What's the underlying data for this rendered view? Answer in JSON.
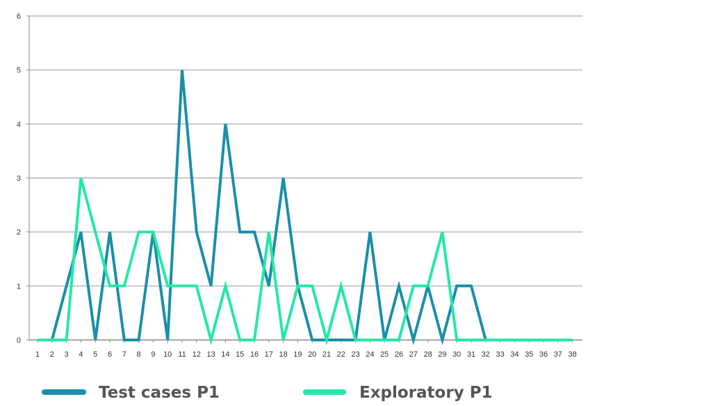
{
  "chart_data": {
    "type": "line",
    "title": "",
    "xlabel": "",
    "ylabel": "",
    "x": [
      1,
      2,
      3,
      4,
      5,
      6,
      7,
      8,
      9,
      10,
      11,
      12,
      13,
      14,
      15,
      16,
      17,
      18,
      19,
      20,
      21,
      22,
      23,
      24,
      25,
      26,
      27,
      28,
      29,
      30,
      31,
      32,
      33,
      34,
      35,
      36,
      37,
      38
    ],
    "x_tick_labels": [
      "1",
      "2",
      "3",
      "4",
      "5",
      "6",
      "7",
      "8",
      "9",
      "10",
      "11",
      "12",
      "13",
      "14",
      "15",
      "16",
      "17",
      "18",
      "19",
      "20",
      "21",
      "22",
      "23",
      "24",
      "25",
      "26",
      "27",
      "28",
      "29",
      "30",
      "31",
      "32",
      "33",
      "34",
      "35",
      "36",
      "37",
      "38"
    ],
    "ylim": [
      0,
      6
    ],
    "y_ticks": [
      0,
      1,
      2,
      3,
      4,
      5,
      6
    ],
    "y_tick_labels": [
      "0",
      "1",
      "2",
      "3",
      "4",
      "5",
      "6"
    ],
    "grid": true,
    "legend_position": "bottom",
    "series": [
      {
        "name": "Test cases P1",
        "color": "#1a8fa8",
        "values": [
          0,
          0,
          1,
          2,
          0,
          2,
          0,
          0,
          2,
          0,
          5,
          2,
          1,
          4,
          2,
          2,
          1,
          3,
          1,
          0,
          0,
          0,
          0,
          2,
          0,
          1,
          0,
          1,
          0,
          1,
          1,
          0,
          0,
          0,
          0,
          0,
          0,
          0
        ]
      },
      {
        "name": "Exploratory P1",
        "color": "#25e8a6",
        "values": [
          0,
          0,
          0,
          3,
          2,
          1,
          1,
          2,
          2,
          1,
          1,
          1,
          0,
          1,
          0,
          0,
          2,
          0,
          1,
          1,
          0,
          1,
          0,
          0,
          0,
          0,
          1,
          1,
          2,
          0,
          0,
          0,
          0,
          0,
          0,
          0,
          0,
          0
        ]
      }
    ]
  }
}
